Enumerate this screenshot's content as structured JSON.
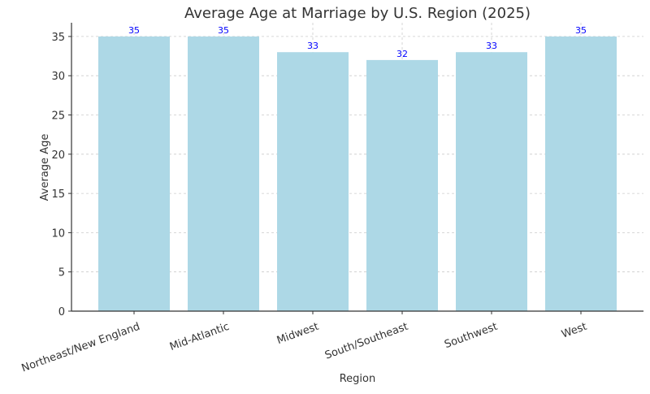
{
  "chart_data": {
    "type": "bar",
    "title": "Average Age at Marriage by U.S. Region (2025)",
    "xlabel": "Region",
    "ylabel": "Average Age",
    "categories": [
      "Northeast/New England",
      "Mid-Atlantic",
      "Midwest",
      "South/Southeast",
      "Southwest",
      "West"
    ],
    "values": [
      35,
      35,
      33,
      32,
      33,
      35
    ],
    "data_labels": [
      "35",
      "35",
      "33",
      "32",
      "33",
      "35"
    ],
    "y_ticks": [
      0,
      5,
      10,
      15,
      20,
      25,
      30,
      35
    ],
    "ylim": [
      0,
      36.75
    ],
    "grid": true,
    "bar_color": "#add8e6",
    "label_color": "#0000ff",
    "text_color": "#333333"
  }
}
